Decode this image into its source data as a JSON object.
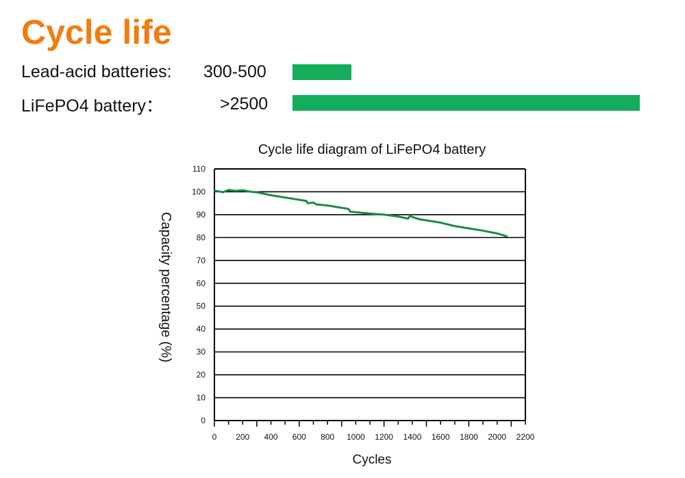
{
  "header": {
    "title": "Cycle life"
  },
  "comparison": [
    {
      "label": "Lead-acid batteries:",
      "value": "300-500",
      "bar_fraction": 0.17
    },
    {
      "label": "LiFePO4 battery：",
      "value": ">2500",
      "bar_fraction": 1.0
    }
  ],
  "colors": {
    "title": "#ef7d0f",
    "bar": "#14ad5c",
    "line": "#1a8a4a"
  },
  "chart_data": {
    "type": "line",
    "title": "Cycle life diagram of LiFePO4 battery",
    "xlabel": "Cycles",
    "ylabel": "Capacity percentage (%)",
    "xlim": [
      0,
      2200
    ],
    "ylim": [
      0,
      110
    ],
    "xticks": [
      0,
      200,
      400,
      600,
      800,
      1000,
      1200,
      1400,
      1600,
      1800,
      2000,
      2200
    ],
    "yticks": [
      0,
      10,
      20,
      30,
      40,
      50,
      60,
      70,
      80,
      90,
      100,
      110
    ],
    "grid": "horizontal",
    "series": [
      {
        "x": [
          0,
          30,
          60,
          100,
          150,
          200,
          260,
          300,
          400,
          500,
          600,
          650,
          660,
          700,
          720,
          800,
          900,
          950,
          960,
          1100,
          1200,
          1300,
          1370,
          1385,
          1400,
          1450,
          1600,
          1700,
          1800,
          1900,
          2000,
          2070
        ],
        "y": [
          100.5,
          100.2,
          99.8,
          100.8,
          100.4,
          100.7,
          100,
          99.8,
          98.5,
          97.5,
          96.5,
          96,
          95,
          95.3,
          94.5,
          94,
          93,
          92.5,
          91.3,
          90.5,
          90,
          89.2,
          88.3,
          89.6,
          89,
          88,
          86.5,
          85,
          84,
          83,
          81.8,
          80.5
        ]
      }
    ]
  }
}
